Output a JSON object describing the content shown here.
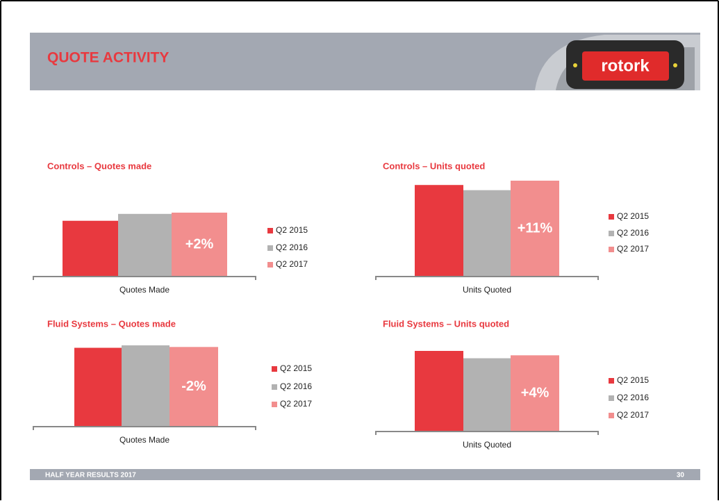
{
  "header": {
    "title": "QUOTE ACTIVITY",
    "logo": "rotork"
  },
  "footer": {
    "text": "HALF YEAR RESULTS 2017",
    "page": "30"
  },
  "chart_data": [
    {
      "type": "bar",
      "title": "Controls – Quotes made",
      "categories": [
        "Quotes Made"
      ],
      "annotation": "+2%",
      "series": [
        {
          "name": "Q2 2015",
          "color": "#e8393f",
          "values": [
            89
          ]
        },
        {
          "name": "Q2 2016",
          "color": "#b2b2b2",
          "values": [
            100
          ]
        },
        {
          "name": "Q2 2017",
          "color": "#f28e8e",
          "values": [
            102
          ]
        }
      ]
    },
    {
      "type": "bar",
      "title": "Controls – Units quoted",
      "categories": [
        "Units Quoted"
      ],
      "annotation": "+11%",
      "series": [
        {
          "name": "Q2 2015",
          "color": "#e8393f",
          "values": [
            106
          ]
        },
        {
          "name": "Q2 2016",
          "color": "#b2b2b2",
          "values": [
            100
          ]
        },
        {
          "name": "Q2 2017",
          "color": "#f28e8e",
          "values": [
            111
          ]
        }
      ]
    },
    {
      "type": "bar",
      "title": "Fluid Systems – Quotes made",
      "categories": [
        "Quotes Made"
      ],
      "annotation": "-2%",
      "series": [
        {
          "name": "Q2 2015",
          "color": "#e8393f",
          "values": [
            97
          ]
        },
        {
          "name": "Q2 2016",
          "color": "#b2b2b2",
          "values": [
            100
          ]
        },
        {
          "name": "Q2 2017",
          "color": "#f28e8e",
          "values": [
            98
          ]
        }
      ]
    },
    {
      "type": "bar",
      "title": "Fluid Systems – Units quoted",
      "categories": [
        "Units Quoted"
      ],
      "annotation": "+4%",
      "series": [
        {
          "name": "Q2 2015",
          "color": "#e8393f",
          "values": [
            110
          ]
        },
        {
          "name": "Q2 2016",
          "color": "#b2b2b2",
          "values": [
            100
          ]
        },
        {
          "name": "Q2 2017",
          "color": "#f28e8e",
          "values": [
            104
          ]
        }
      ]
    }
  ]
}
